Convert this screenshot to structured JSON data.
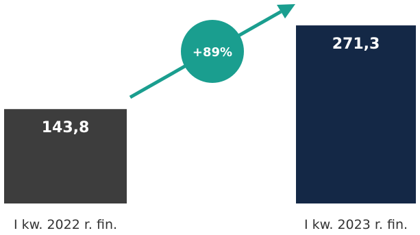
{
  "chart_data": {
    "type": "bar",
    "categories": [
      "I kw. 2022 r. fin.",
      "I kw. 2023 r. fin."
    ],
    "values": [
      143.8,
      271.3
    ],
    "value_labels": [
      "143,8",
      "271,3"
    ],
    "colors": [
      "#3d3d3d",
      "#142846"
    ],
    "ylim": [
      0,
      310
    ],
    "change_badge": {
      "label": "+89%",
      "color": "#1a9e8f"
    }
  }
}
